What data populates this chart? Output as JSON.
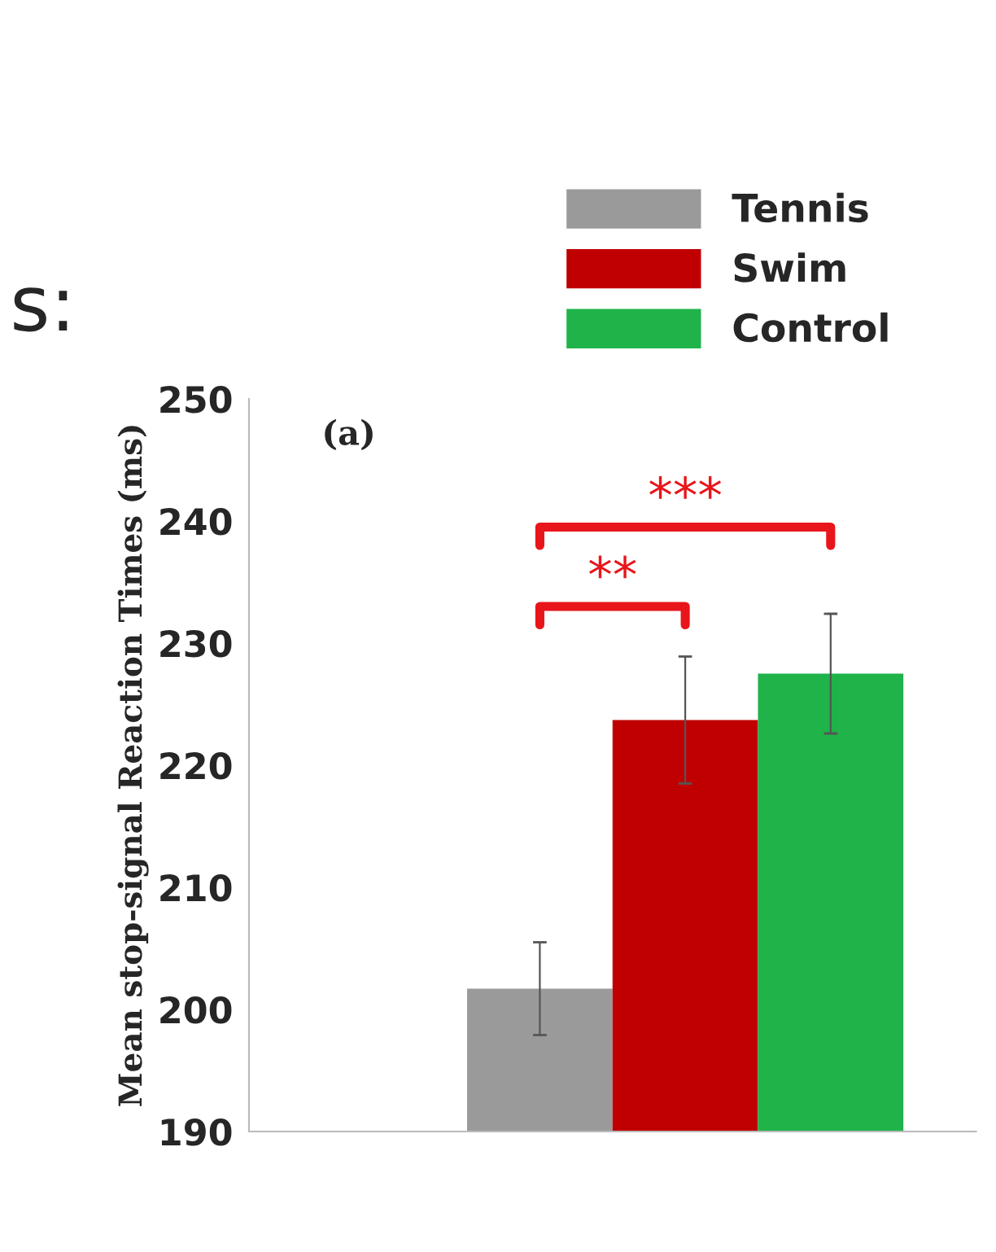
{
  "chart_data": {
    "type": "bar",
    "categories": [
      null
    ],
    "series": [
      {
        "name": "Tennis",
        "color": "#9a9a9a",
        "values": [
          201.7
        ],
        "errors": [
          3.8
        ]
      },
      {
        "name": "Swim",
        "color": "#c00000",
        "values": [
          223.7
        ],
        "errors": [
          5.2
        ]
      },
      {
        "name": "Control",
        "color": "#1fb34a",
        "values": [
          227.5
        ],
        "errors": [
          4.9
        ]
      }
    ],
    "ylabel": "Mean stop-signal Reaction Times (ms)",
    "ylim": [
      190,
      250
    ],
    "yticks": [
      190,
      200,
      210,
      220,
      230,
      240,
      250
    ],
    "grid": false,
    "legend": "top right",
    "annotations": [
      "s:",
      "(a)",
      "**",
      "***"
    ]
  }
}
